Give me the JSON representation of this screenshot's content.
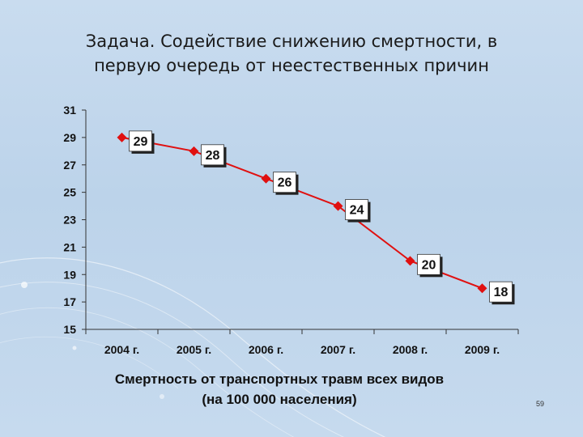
{
  "title_lines": [
    "Задача. Содействие снижению смертности, в",
    "первую очередь от неестественных причин"
  ],
  "caption_lines": [
    "Смертность от транспортных травм всех видов",
    "(на 100 000 населения)"
  ],
  "page_number": "59",
  "colors": {
    "series": "#e01010",
    "axis": "#333333",
    "label_box": "#ffffff"
  },
  "chart_data": {
    "type": "line",
    "categories": [
      "2004 г.",
      "2005 г.",
      "2006 г.",
      "2007 г.",
      "2008 г.",
      "2009 г."
    ],
    "series": [
      {
        "values": [
          29,
          28,
          26,
          24,
          20,
          18
        ]
      }
    ],
    "data_labels": [
      "29",
      "28",
      "26",
      "24",
      "20",
      "18"
    ],
    "yticks": [
      31,
      29,
      27,
      25,
      23,
      21,
      19,
      17,
      15
    ],
    "ylim": [
      15,
      31
    ],
    "title": "",
    "xlabel": "",
    "ylabel": "",
    "grid": false,
    "legend": "none",
    "marker": "diamond"
  }
}
